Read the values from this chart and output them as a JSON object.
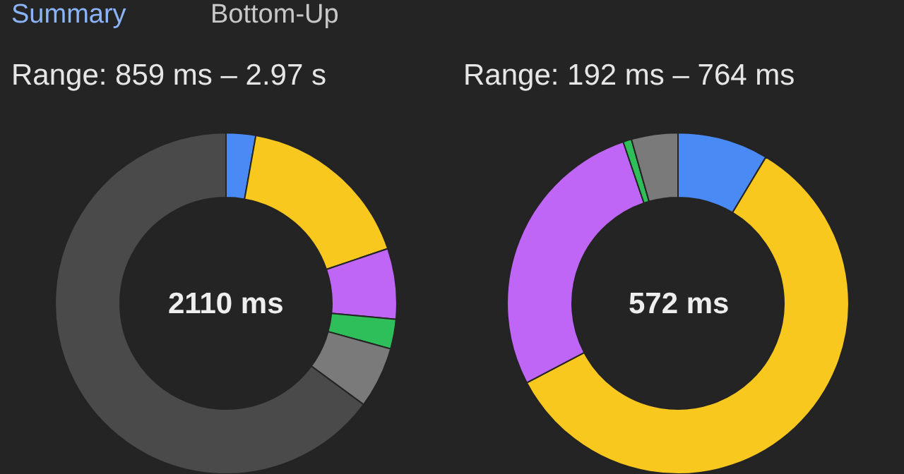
{
  "chart_data": [
    {
      "type": "donut",
      "title": "Range: 859 ms – 2.97 s",
      "annotations": [
        "Summary",
        "Bottom-Up",
        "2110 ms"
      ],
      "categories": [
        null,
        null,
        null,
        null,
        null,
        null
      ],
      "values": [
        2.8,
        17,
        6.7,
        2.8,
        5.8,
        64.9
      ],
      "colors": [
        "#4a8af4",
        "#f9c81e",
        "#c066f6",
        "#2fbf5a",
        "#7a7a7a",
        "#4a4a4a"
      ]
    },
    {
      "type": "donut",
      "title": "Range: 192 ms – 764 ms",
      "annotations": [
        "572 ms"
      ],
      "categories": [
        null,
        null,
        null,
        null,
        null
      ],
      "values": [
        8.6,
        58.7,
        27.5,
        0.8,
        4.4
      ],
      "colors": [
        "#4a8af4",
        "#f9c81e",
        "#c066f6",
        "#2fbf5a",
        "#7a7a7a"
      ]
    }
  ]
}
